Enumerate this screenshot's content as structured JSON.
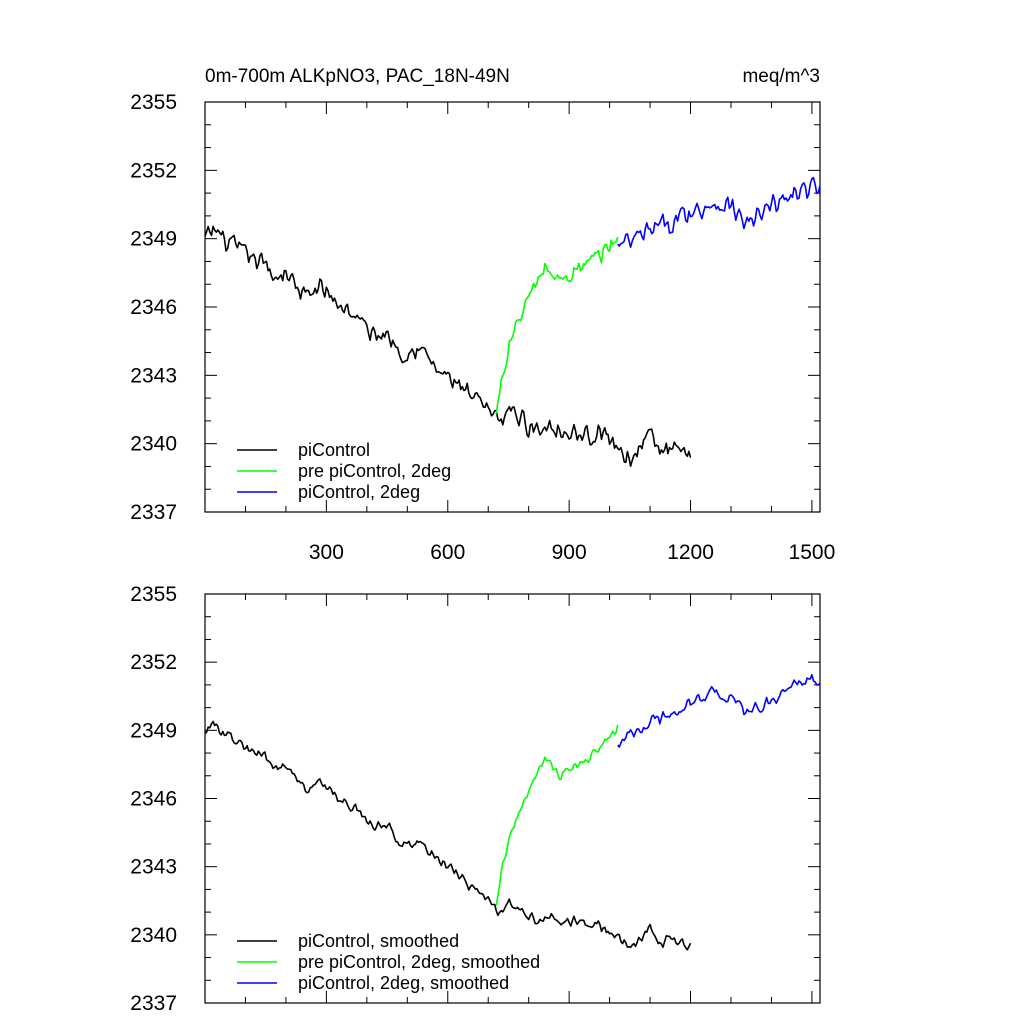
{
  "chart_data": [
    {
      "type": "line",
      "title": "0m-700m ALKpNO3, PAC_18N-49N",
      "units": "meq/m^3",
      "xlim": [
        0,
        1520
      ],
      "ylim": [
        2337,
        2355
      ],
      "xticks": [
        300,
        600,
        900,
        1200,
        1500
      ],
      "yticks": [
        2337,
        2340,
        2343,
        2346,
        2349,
        2352,
        2355
      ],
      "show_x_tick_labels": true,
      "legend_position": "bottom-left",
      "series": [
        {
          "name": "piControl",
          "color": "#000000",
          "x": [
            0,
            25,
            50,
            75,
            100,
            125,
            150,
            175,
            200,
            225,
            250,
            275,
            300,
            325,
            350,
            375,
            400,
            425,
            450,
            475,
            500,
            525,
            550,
            575,
            600,
            625,
            650,
            675,
            700,
            725,
            750,
            775,
            800,
            825,
            850,
            875,
            900,
            925,
            950,
            975,
            1000,
            1025,
            1050,
            1075,
            1100,
            1125,
            1150,
            1175,
            1200
          ],
          "values": [
            2349.0,
            2349.4,
            2348.9,
            2348.6,
            2348.3,
            2348.1,
            2347.8,
            2347.3,
            2347.6,
            2346.9,
            2346.4,
            2346.8,
            2346.7,
            2346.2,
            2345.9,
            2345.6,
            2345.0,
            2344.7,
            2344.9,
            2344.2,
            2344.0,
            2344.3,
            2343.8,
            2343.2,
            2342.9,
            2342.6,
            2342.1,
            2341.8,
            2341.4,
            2341.0,
            2341.5,
            2341.2,
            2340.8,
            2340.6,
            2340.9,
            2340.7,
            2340.4,
            2340.5,
            2340.3,
            2340.6,
            2340.1,
            2339.8,
            2339.3,
            2339.9,
            2340.4,
            2339.6,
            2339.8,
            2339.5,
            2339.2
          ],
          "noise": 0.55
        },
        {
          "name": "pre piControl, 2deg",
          "color": "#00ff00",
          "x": [
            720,
            730,
            745,
            760,
            780,
            800,
            820,
            840,
            860,
            880,
            900,
            920,
            940,
            960,
            980,
            1000,
            1020
          ],
          "values": [
            2341.2,
            2342.5,
            2343.8,
            2344.8,
            2345.6,
            2346.4,
            2347.0,
            2347.8,
            2347.4,
            2347.1,
            2347.5,
            2347.6,
            2347.8,
            2348.0,
            2348.3,
            2348.7,
            2349.1
          ],
          "noise": 0.5
        },
        {
          "name": "piControl, 2deg",
          "color": "#0000ff",
          "x": [
            1020,
            1060,
            1100,
            1140,
            1180,
            1220,
            1260,
            1300,
            1340,
            1380,
            1420,
            1460,
            1500,
            1520
          ],
          "values": [
            2348.6,
            2348.9,
            2349.3,
            2349.6,
            2350.0,
            2350.3,
            2350.6,
            2350.4,
            2349.6,
            2350.1,
            2350.6,
            2351.0,
            2351.2,
            2351.0
          ],
          "noise": 0.6
        }
      ]
    },
    {
      "type": "line",
      "title": "",
      "units": "",
      "xlim": [
        0,
        1520
      ],
      "ylim": [
        2337,
        2355
      ],
      "xticks": [
        300,
        600,
        900,
        1200,
        1500
      ],
      "yticks": [
        2337,
        2340,
        2343,
        2346,
        2349,
        2352,
        2355
      ],
      "show_x_tick_labels": false,
      "legend_position": "bottom-left",
      "series": [
        {
          "name": "piControl, smoothed",
          "color": "#000000",
          "x": [
            0,
            25,
            50,
            75,
            100,
            125,
            150,
            175,
            200,
            225,
            250,
            275,
            300,
            325,
            350,
            375,
            400,
            425,
            450,
            475,
            500,
            525,
            550,
            575,
            600,
            625,
            650,
            675,
            700,
            725,
            750,
            775,
            800,
            825,
            850,
            875,
            900,
            925,
            950,
            975,
            1000,
            1025,
            1050,
            1075,
            1100,
            1125,
            1150,
            1175,
            1200
          ],
          "values": [
            2349.0,
            2349.3,
            2348.8,
            2348.5,
            2348.2,
            2348.0,
            2347.8,
            2347.3,
            2347.5,
            2346.9,
            2346.4,
            2346.7,
            2346.6,
            2346.1,
            2345.8,
            2345.6,
            2345.0,
            2344.7,
            2344.8,
            2344.2,
            2344.0,
            2344.2,
            2343.8,
            2343.3,
            2343.0,
            2342.7,
            2342.2,
            2341.9,
            2341.5,
            2341.0,
            2341.4,
            2341.1,
            2340.8,
            2340.6,
            2340.9,
            2340.7,
            2340.5,
            2340.6,
            2340.3,
            2340.5,
            2340.1,
            2339.9,
            2339.4,
            2339.9,
            2340.3,
            2339.7,
            2339.8,
            2339.6,
            2339.4
          ],
          "noise": 0.3
        },
        {
          "name": "pre piControl, 2deg, smoothed",
          "color": "#00ff00",
          "x": [
            720,
            730,
            745,
            760,
            780,
            800,
            820,
            840,
            860,
            880,
            900,
            920,
            940,
            960,
            980,
            1000,
            1020
          ],
          "values": [
            2341.4,
            2342.6,
            2343.8,
            2344.7,
            2345.5,
            2346.3,
            2347.0,
            2347.8,
            2347.3,
            2347.0,
            2347.4,
            2347.5,
            2347.7,
            2348.0,
            2348.3,
            2348.7,
            2349.2
          ],
          "noise": 0.25
        },
        {
          "name": "piControl, 2deg, smoothed",
          "color": "#0000ff",
          "x": [
            1020,
            1060,
            1100,
            1140,
            1180,
            1220,
            1260,
            1300,
            1340,
            1380,
            1420,
            1460,
            1500,
            1520
          ],
          "values": [
            2348.5,
            2348.9,
            2349.3,
            2349.6,
            2350.0,
            2350.4,
            2350.7,
            2350.4,
            2349.7,
            2350.1,
            2350.6,
            2351.0,
            2351.3,
            2351.0
          ],
          "noise": 0.35
        }
      ]
    }
  ]
}
